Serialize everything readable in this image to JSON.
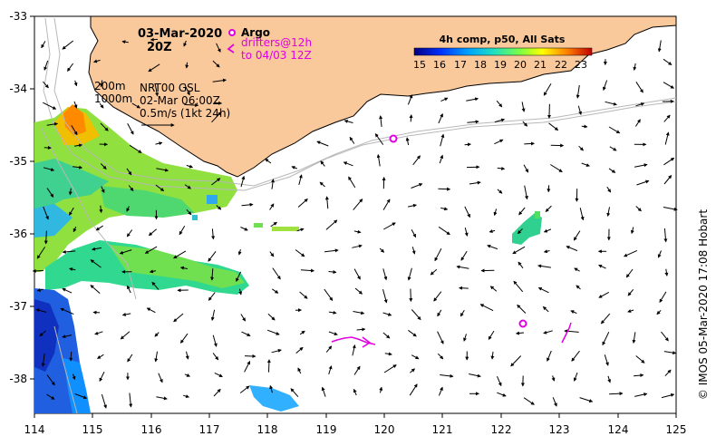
{
  "map": {
    "date": "03-Mar-2020",
    "hour": "20Z",
    "argo_label": "Argo",
    "drifters_line1": "drifters@12h",
    "drifters_line2": "to 04/03 12Z",
    "depth_200": "200m",
    "depth_1000": "1000m",
    "product_line1": "NRT00 GSL",
    "product_line2": "02-Mar 06:00Z",
    "scale_label": "0.5m/s (1kt 24h)",
    "colorbar_title": "4h comp, p50, All Sats",
    "colorbar_ticks": [
      "15",
      "16",
      "17",
      "18",
      "19",
      "20",
      "21",
      "22",
      "23"
    ],
    "credit": "© IMOS 05-Mar-2020 17:08 Hobart",
    "x_ticks": [
      "114",
      "115",
      "116",
      "117",
      "118",
      "119",
      "120",
      "121",
      "122",
      "123",
      "124",
      "125"
    ],
    "y_ticks": [
      "-33",
      "-34",
      "-35",
      "-36",
      "-37",
      "-38"
    ],
    "land_color": "#f9c89b",
    "argo_color": "#e000e0"
  }
}
